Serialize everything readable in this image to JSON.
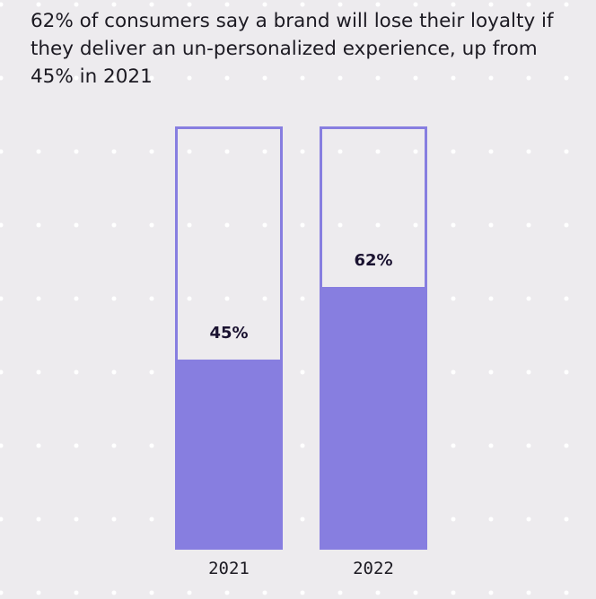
{
  "chart_data": {
    "type": "bar",
    "title": "62% of consumers say a brand will lose their loyalty if they deliver an un-personalized experience, up from 45% in 2021",
    "categories": [
      "2021",
      "2022"
    ],
    "values": [
      45,
      62
    ],
    "data_labels": [
      "45%",
      "62%"
    ],
    "ylim": [
      0,
      100
    ],
    "grid": false,
    "bar_color": "#877ee0",
    "background_color": "#edebee"
  }
}
